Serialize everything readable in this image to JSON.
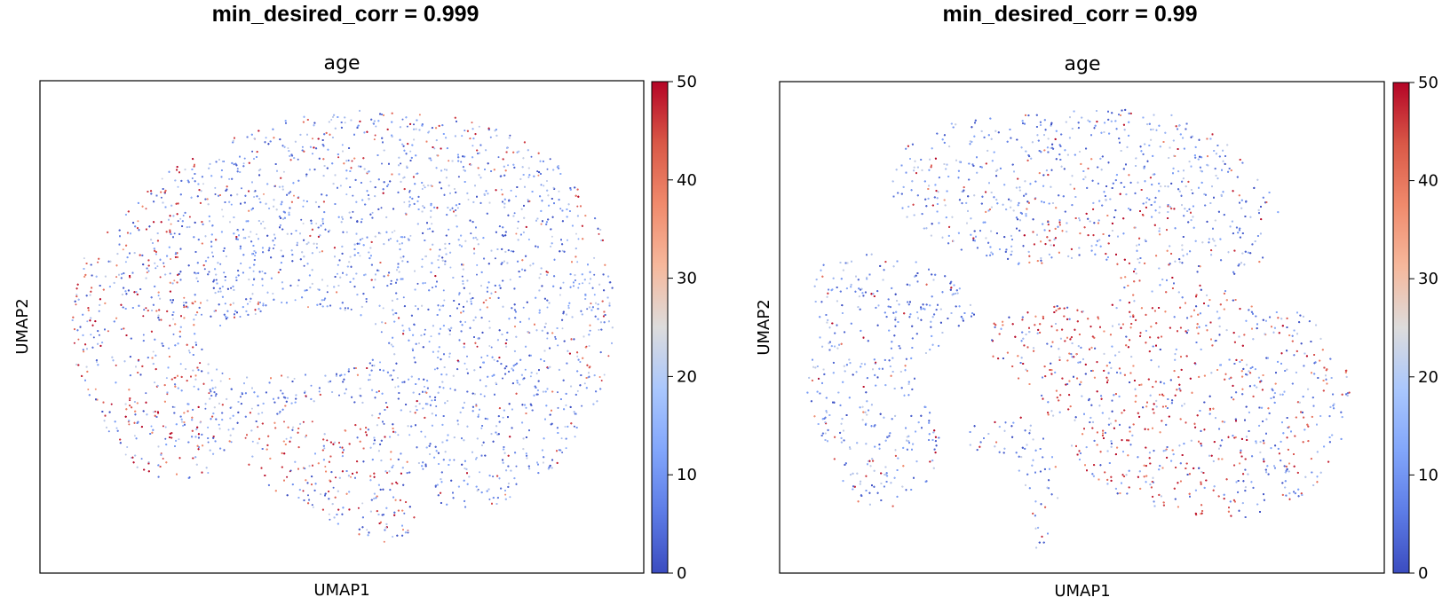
{
  "chart_data": [
    {
      "type": "scatter",
      "suptitle": "min_desired_corr = 0.999",
      "title": "age",
      "xlabel": "UMAP1",
      "ylabel": "UMAP2",
      "grid": false,
      "legend": "colorbar-right",
      "colormap": "coolwarm",
      "color_variable": "age",
      "colorbar": {
        "min": 0,
        "max": 50,
        "ticks": [
          "0",
          "10",
          "20",
          "30",
          "40",
          "50"
        ]
      },
      "palette": {
        "low": "#3b4cc0",
        "mid": "#dddddd",
        "high": "#b40426"
      }
    },
    {
      "type": "scatter",
      "suptitle": "min_desired_corr = 0.99",
      "title": "age",
      "xlabel": "UMAP1",
      "ylabel": "UMAP2",
      "grid": false,
      "legend": "colorbar-right",
      "colormap": "coolwarm",
      "color_variable": "age",
      "colorbar": {
        "min": 0,
        "max": 50,
        "ticks": [
          "0",
          "10",
          "20",
          "30",
          "40",
          "50"
        ]
      },
      "palette": {
        "low": "#3b4cc0",
        "mid": "#dddddd",
        "high": "#b40426"
      }
    }
  ]
}
